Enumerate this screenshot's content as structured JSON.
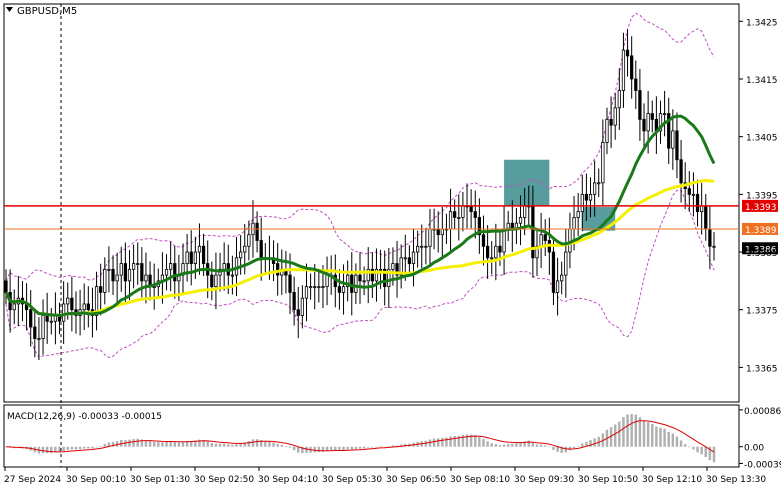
{
  "chart_data": {
    "type": "candlestick",
    "symbol_label": "GBPUSD,M5",
    "price_axis": {
      "ylim": [
        1.3359,
        1.3428
      ],
      "ticks": [
        "1.3425",
        "1.3415",
        "1.3405",
        "1.3395",
        "1.3385",
        "1.3375",
        "1.3365"
      ],
      "tick_values": [
        1.3425,
        1.3415,
        1.3405,
        1.3395,
        1.3385,
        1.3375,
        1.3365
      ]
    },
    "time_axis": {
      "labels": [
        "27 Sep 2024",
        "30 Sep 00:10",
        "30 Sep 01:30",
        "30 Sep 02:50",
        "30 Sep 04:10",
        "30 Sep 05:30",
        "30 Sep 06:50",
        "30 Sep 08:10",
        "30 Sep 09:30",
        "30 Sep 10:50",
        "30 Sep 12:10",
        "30 Sep 13:30"
      ]
    },
    "levels": [
      {
        "name": "resistance",
        "value": 1.3393,
        "label": "1.3393",
        "color": "#e00000"
      },
      {
        "name": "support",
        "value": 1.3389,
        "label": "1.3389",
        "color": "#f07020"
      },
      {
        "name": "current",
        "value": 1.3386,
        "label": "1.3386",
        "color": "#000000"
      }
    ],
    "zones": [
      {
        "name": "zone-1",
        "start_bar": 121,
        "end_bar": 132,
        "from": 1.3393,
        "to": 1.3401,
        "color": "#3a8c8c"
      },
      {
        "name": "zone-2",
        "start_bar": 140,
        "end_bar": 148,
        "from": 1.33887,
        "to": 1.33928,
        "color": "#3a8c8c"
      }
    ],
    "series": {
      "open": [
        1.338,
        1.3378,
        1.3375,
        1.3376,
        1.3377,
        1.3376,
        1.3375,
        1.3372,
        1.337,
        1.337,
        1.3374,
        1.3373,
        1.3373,
        1.3374,
        1.3373,
        1.3376,
        1.3377,
        1.3375,
        1.3374,
        1.3375,
        1.3376,
        1.3375,
        1.3374,
        1.3379,
        1.3378,
        1.3382,
        1.3382,
        1.338,
        1.3381,
        1.3383,
        1.338,
        1.3382,
        1.3383,
        1.3383,
        1.338,
        1.3381,
        1.3379,
        1.3379,
        1.338,
        1.3381,
        1.3382,
        1.3383,
        1.338,
        1.3381,
        1.3383,
        1.3385,
        1.3383,
        1.3385,
        1.3386,
        1.3383,
        1.3381,
        1.3379,
        1.3381,
        1.3382,
        1.3383,
        1.3381,
        1.3381,
        1.3384,
        1.3385,
        1.3386,
        1.3388,
        1.339,
        1.3387,
        1.3384,
        1.3384,
        1.3384,
        1.3383,
        1.3381,
        1.3382,
        1.3381,
        1.3378,
        1.3375,
        1.3374,
        1.3377,
        1.3379,
        1.3379,
        1.3379,
        1.3379,
        1.3379,
        1.3381,
        1.3381,
        1.3379,
        1.3378,
        1.3379,
        1.3381,
        1.3378,
        1.3381,
        1.338,
        1.338,
        1.3382,
        1.338,
        1.3382,
        1.3382,
        1.3379,
        1.3382,
        1.3383,
        1.3381,
        1.3384,
        1.3384,
        1.3383,
        1.3385,
        1.3386,
        1.3386,
        1.3386,
        1.3389,
        1.3389,
        1.3388,
        1.3389,
        1.3389,
        1.3392,
        1.3391,
        1.3391,
        1.3393,
        1.3393,
        1.3392,
        1.3391,
        1.3388,
        1.3386,
        1.3384,
        1.3384,
        1.3386,
        1.3385,
        1.3389,
        1.339,
        1.3389,
        1.339,
        1.3391,
        1.3393,
        1.3393,
        1.3384,
        1.3386,
        1.3388,
        1.3387,
        1.3385,
        1.3378,
        1.338,
        1.3381,
        1.3385,
        1.3389,
        1.3391,
        1.3392,
        1.3395,
        1.3394,
        1.3395,
        1.3397,
        1.3397,
        1.3404,
        1.3408,
        1.3407,
        1.341,
        1.3413,
        1.342,
        1.3419,
        1.3415,
        1.3413,
        1.3408,
        1.3406,
        1.3409,
        1.3408,
        1.3406,
        1.3409,
        1.3409,
        1.3403,
        1.3406,
        1.3401,
        1.3397,
        1.3396,
        1.3395,
        1.3395,
        1.3392,
        1.3393,
        1.3389,
        1.3386
      ],
      "close": [
        1.3378,
        1.3375,
        1.3376,
        1.3377,
        1.3376,
        1.3375,
        1.3372,
        1.337,
        1.337,
        1.3374,
        1.3373,
        1.3373,
        1.3374,
        1.3373,
        1.3376,
        1.3377,
        1.3375,
        1.3374,
        1.3375,
        1.3376,
        1.3375,
        1.3374,
        1.3379,
        1.3378,
        1.3382,
        1.3382,
        1.338,
        1.3381,
        1.3383,
        1.338,
        1.3382,
        1.3383,
        1.3383,
        1.338,
        1.3381,
        1.3379,
        1.3379,
        1.338,
        1.3381,
        1.3382,
        1.3383,
        1.338,
        1.3381,
        1.3383,
        1.3385,
        1.3383,
        1.3385,
        1.3386,
        1.3383,
        1.3381,
        1.3379,
        1.3381,
        1.3382,
        1.3383,
        1.3381,
        1.3381,
        1.3384,
        1.3385,
        1.3386,
        1.3388,
        1.339,
        1.3387,
        1.3384,
        1.3384,
        1.3384,
        1.3383,
        1.3381,
        1.3382,
        1.3381,
        1.3378,
        1.3375,
        1.3374,
        1.3377,
        1.3379,
        1.3379,
        1.3379,
        1.3379,
        1.3379,
        1.3381,
        1.3381,
        1.3379,
        1.3378,
        1.3379,
        1.3381,
        1.3378,
        1.3381,
        1.338,
        1.338,
        1.3382,
        1.338,
        1.3382,
        1.3382,
        1.3379,
        1.3382,
        1.3383,
        1.3381,
        1.3384,
        1.3384,
        1.3383,
        1.3385,
        1.3386,
        1.3386,
        1.3386,
        1.3389,
        1.3389,
        1.3388,
        1.3389,
        1.3389,
        1.3392,
        1.3391,
        1.3391,
        1.3393,
        1.3393,
        1.3392,
        1.3391,
        1.3388,
        1.3386,
        1.3384,
        1.3384,
        1.3386,
        1.3385,
        1.3389,
        1.339,
        1.3389,
        1.339,
        1.3391,
        1.3393,
        1.3393,
        1.3384,
        1.3386,
        1.3388,
        1.3387,
        1.3385,
        1.3378,
        1.338,
        1.3381,
        1.3385,
        1.3389,
        1.3391,
        1.3392,
        1.3395,
        1.3394,
        1.3395,
        1.3397,
        1.3397,
        1.3404,
        1.3408,
        1.3407,
        1.341,
        1.3413,
        1.342,
        1.3419,
        1.3415,
        1.3413,
        1.3408,
        1.3406,
        1.3409,
        1.3408,
        1.3406,
        1.3409,
        1.3409,
        1.3403,
        1.3406,
        1.3401,
        1.3397,
        1.3396,
        1.3395,
        1.3395,
        1.3392,
        1.3393,
        1.3389,
        1.3386,
        1.3386
      ]
    },
    "indicators": {
      "ma_fast": {
        "color": "#1a7a1a",
        "period_note": ""
      },
      "ma_slow": {
        "color": "#f5f000"
      },
      "envelope": {
        "color": "#c050c0"
      }
    },
    "macd": {
      "label": "MACD(12,26,9) -0.00033 -0.00015",
      "ticks": [
        "0.00086",
        "0.00",
        "-0.00039"
      ],
      "tick_values": [
        0.00086,
        0.0,
        -0.00039
      ],
      "ylim": [
        -0.00045,
        0.00095
      ]
    }
  }
}
